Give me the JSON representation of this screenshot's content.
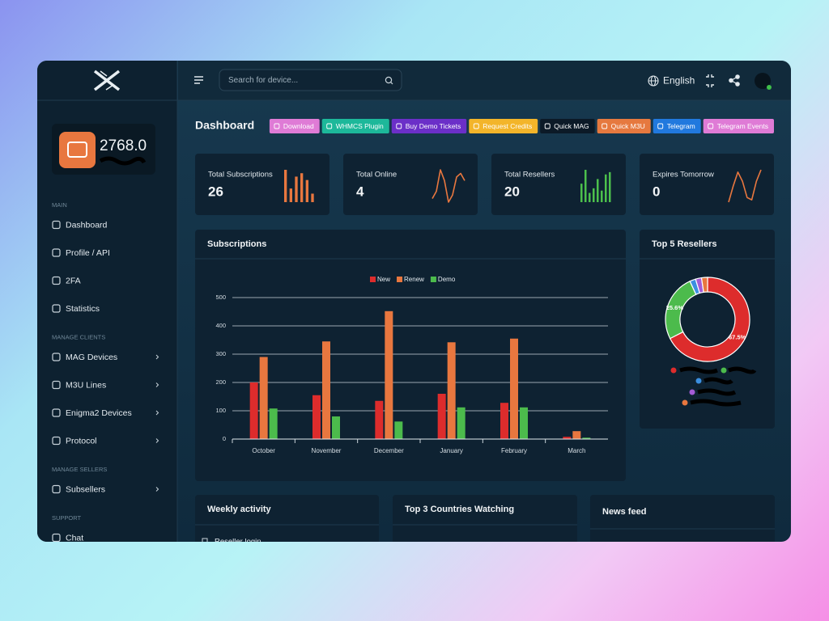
{
  "topbar": {
    "search_placeholder": "Search for device...",
    "language": "English"
  },
  "sidebar": {
    "balance": "2768.0",
    "sections": [
      {
        "title": "MAIN",
        "items": [
          "Dashboard",
          "Profile / API",
          "2FA",
          "Statistics"
        ]
      },
      {
        "title": "MANAGE CLIENTS",
        "items": [
          "MAG Devices",
          "M3U Lines",
          "Enigma2 Devices",
          "Protocol"
        ]
      },
      {
        "title": "MANAGE SELLERS",
        "items": [
          "Subsellers"
        ]
      },
      {
        "title": "SUPPORT",
        "items": [
          "Chat"
        ]
      }
    ]
  },
  "header": {
    "title": "Dashboard",
    "buttons": [
      {
        "label": "Download",
        "color": "#df7bd6"
      },
      {
        "label": "WHMCS Plugin",
        "color": "#1db89a"
      },
      {
        "label": "Buy Demo Tickets",
        "color": "#6b2fc8"
      },
      {
        "label": "Request Credits",
        "color": "#f3b52a"
      },
      {
        "label": "Quick MAG",
        "color": "#0c1a27"
      },
      {
        "label": "Quick M3U",
        "color": "#e6793f"
      },
      {
        "label": "Telegram",
        "color": "#2179de"
      },
      {
        "label": "Telegram Events",
        "color": "#df7bd6"
      }
    ]
  },
  "cards": [
    {
      "label": "Total Subscriptions",
      "value": 26,
      "spark_type": "bar",
      "spark_color": "#e8773f",
      "spark": [
        38,
        16,
        30,
        34,
        26,
        10
      ]
    },
    {
      "label": "Total Online",
      "value": 4,
      "spark_type": "line",
      "spark_color": "#e8773f",
      "spark": [
        4,
        6,
        12,
        9,
        3,
        5,
        10,
        11,
        9
      ]
    },
    {
      "label": "Total Resellers",
      "value": 20,
      "spark_type": "bar",
      "spark_color": "#4cc04c",
      "spark": [
        16,
        28,
        8,
        12,
        20,
        10,
        24,
        26
      ]
    },
    {
      "label": "Expires Tomorrow",
      "value": 0,
      "spark_type": "line",
      "spark_color": "#e8773f",
      "spark": [
        2,
        9,
        15,
        11,
        4,
        3,
        11,
        16
      ]
    }
  ],
  "chart_data": [
    {
      "type": "bar",
      "title": "Subscriptions",
      "categories": [
        "October",
        "November",
        "December",
        "January",
        "February",
        "March"
      ],
      "series": [
        {
          "name": "New",
          "color": "#dd2c2c",
          "values": [
            200,
            155,
            135,
            160,
            128,
            8
          ]
        },
        {
          "name": "Renew",
          "color": "#e8773f",
          "values": [
            290,
            345,
            452,
            342,
            355,
            28
          ]
        },
        {
          "name": "Demo",
          "color": "#4cbb4c",
          "values": [
            108,
            80,
            62,
            112,
            112,
            5
          ]
        }
      ],
      "ylim": [
        0,
        500
      ],
      "yticks": [
        0,
        100,
        200,
        300,
        400,
        500
      ],
      "grid": true
    },
    {
      "type": "pie",
      "title": "Top 5 Resellers",
      "values": [
        67.5,
        25.6,
        2.3,
        2.3,
        2.3
      ],
      "value_labels": [
        "67.5%",
        "25.6%",
        null,
        null,
        null
      ],
      "colors": [
        "#dd2c2c",
        "#4cbb4c",
        "#3b8fe0",
        "#a35bd6",
        "#e8773f"
      ]
    }
  ],
  "panels": [
    {
      "title": "Weekly activity",
      "items": [
        "Reseller login"
      ]
    },
    {
      "title": "Top 3 Countries Watching"
    },
    {
      "title": "News feed"
    }
  ]
}
